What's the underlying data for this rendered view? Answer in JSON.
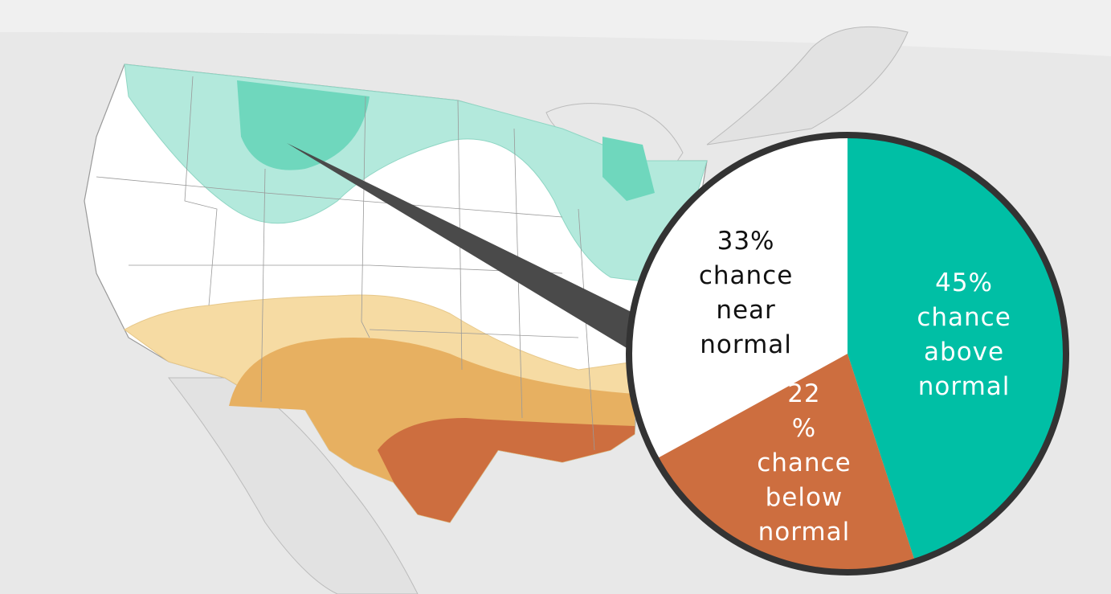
{
  "chart_data": {
    "type": "pie",
    "categories": [
      "chance above normal",
      "chance below normal",
      "chance near normal"
    ],
    "values": [
      45,
      22,
      33
    ],
    "value_labels": [
      "45%",
      "22 %",
      "33%"
    ],
    "colors": [
      "#00bfa5",
      "#cd6e3f",
      "#ffffff"
    ]
  }
}
